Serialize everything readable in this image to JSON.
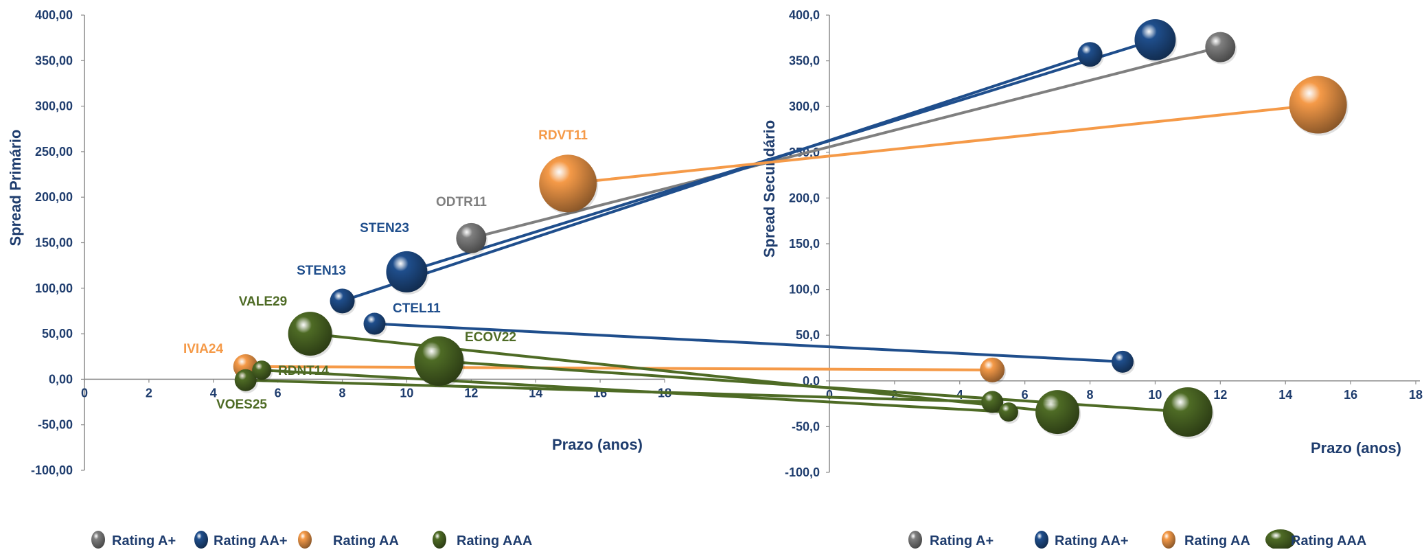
{
  "chart_data": [
    {
      "type": "scatter",
      "xlabel": "Prazo (anos)",
      "ylabel": "Spread Primário",
      "xlim": [
        0,
        18
      ],
      "ylim": [
        -100,
        400
      ],
      "x_ticks": [
        "0",
        "2",
        "4",
        "6",
        "8",
        "10",
        "12",
        "14",
        "16",
        "18"
      ],
      "y_ticks": [
        "400,00",
        "350,00",
        "300,00",
        "250,00",
        "200,00",
        "150,00",
        "100,00",
        "50,00",
        "0,00",
        "-50,00",
        "-100,00"
      ],
      "series": [
        {
          "name": "Rating A+",
          "color": "#7F7F7F",
          "points": [
            {
              "label": "ODTR11",
              "x": 12,
              "y": 155,
              "size": 22
            }
          ]
        },
        {
          "name": "Rating AA+",
          "color": "#1F4E8C",
          "points": [
            {
              "label": "STEN23",
              "x": 10,
              "y": 118,
              "size": 30
            },
            {
              "label": "STEN13",
              "x": 8,
              "y": 86,
              "size": 18
            },
            {
              "label": "CTEL11",
              "x": 9,
              "y": 61,
              "size": 16
            }
          ]
        },
        {
          "name": "Rating AA",
          "color": "#F59A48",
          "points": [
            {
              "label": "RDVT11",
              "x": 15,
              "y": 215,
              "size": 42
            },
            {
              "label": "IVIA24",
              "x": 5,
              "y": 14,
              "size": 18
            }
          ]
        },
        {
          "name": "Rating AAA",
          "color": "#4E6B25",
          "points": [
            {
              "label": "VALE29",
              "x": 7,
              "y": 50,
              "size": 32
            },
            {
              "label": "ECOV22",
              "x": 11,
              "y": 20,
              "size": 36
            },
            {
              "label": "RDNT14",
              "x": 5.5,
              "y": 10,
              "size": 14
            },
            {
              "label": "VOES25",
              "x": 5,
              "y": -1,
              "size": 16
            }
          ]
        }
      ],
      "legend": [
        "Rating A+",
        "Rating AA+",
        "Rating AA",
        "Rating AAA"
      ],
      "legend_position": "bottom-left"
    },
    {
      "type": "scatter",
      "xlabel": "Prazo (anos)",
      "ylabel": "Spread Secundário",
      "xlim": [
        0,
        18
      ],
      "ylim": [
        -100,
        400
      ],
      "x_ticks": [
        "0",
        "2",
        "4",
        "6",
        "8",
        "10",
        "12",
        "14",
        "16",
        "18"
      ],
      "y_ticks": [
        "400,0",
        "350,0",
        "300,0",
        "250,0",
        "200,0",
        "150,0",
        "100,0",
        "50,0",
        "0,0",
        "-50,0",
        "-100,0"
      ],
      "series": [
        {
          "name": "Rating A+",
          "color": "#7F7F7F",
          "points": [
            {
              "label": "ODTR11",
              "x": 12,
              "y": 365,
              "size": 22
            }
          ]
        },
        {
          "name": "Rating AA+",
          "color": "#1F4E8C",
          "points": [
            {
              "label": "STEN23",
              "x": 10,
              "y": 373,
              "size": 30
            },
            {
              "label": "STEN13",
              "x": 8,
              "y": 357,
              "size": 18
            },
            {
              "label": "CTEL11",
              "x": 9,
              "y": 21,
              "size": 16
            }
          ]
        },
        {
          "name": "Rating AA",
          "color": "#F59A48",
          "points": [
            {
              "label": "RDVT11",
              "x": 15,
              "y": 302,
              "size": 42
            },
            {
              "label": "IVIA24",
              "x": 5,
              "y": 12,
              "size": 18
            }
          ]
        },
        {
          "name": "Rating AAA",
          "color": "#4E6B25",
          "points": [
            {
              "label": "VALE29",
              "x": 7,
              "y": -34,
              "size": 32
            },
            {
              "label": "ECOV22",
              "x": 11,
              "y": -34,
              "size": 36
            },
            {
              "label": "RDNT14",
              "x": 5.5,
              "y": -34,
              "size": 14
            },
            {
              "label": "VOES25",
              "x": 5,
              "y": -23,
              "size": 16
            }
          ]
        }
      ],
      "legend": [
        "Rating A+",
        "Rating AA+",
        "Rating AA",
        "Rating AAA"
      ],
      "legend_position": "bottom-right"
    }
  ]
}
